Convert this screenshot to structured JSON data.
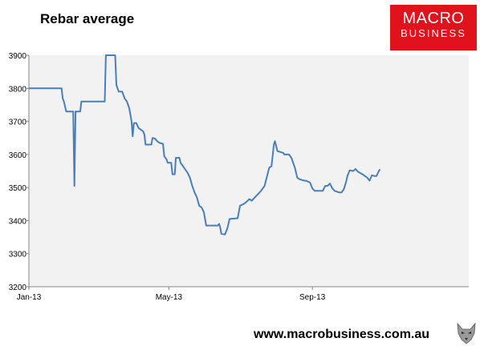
{
  "header": {
    "title": "Rebar average"
  },
  "logo": {
    "line1": "MACRO",
    "line2": "BUSINESS",
    "color": "#e0121b"
  },
  "footer": {
    "url": "www.macrobusiness.com.au"
  },
  "icons": {
    "mascot": "wolf-mascot-icon"
  },
  "chart_data": {
    "type": "line",
    "title": "Rebar average",
    "xlabel": "",
    "ylabel": "",
    "ylim": [
      3200,
      3900
    ],
    "yticks": [
      3200,
      3300,
      3400,
      3500,
      3600,
      3700,
      3800,
      3900
    ],
    "xticks": [
      "Jan-13",
      "May-13",
      "Sep-13"
    ],
    "xlim": [
      "2013-01-01",
      "2013-12-31"
    ],
    "grid": false,
    "line_color": "#4a7ebb",
    "plot_background": "#f2f2f2",
    "series": [
      {
        "points": [
          [
            "2013-01-01",
            3800
          ],
          [
            "2013-01-29",
            3800
          ],
          [
            "2013-01-30",
            3770
          ],
          [
            "2013-01-31",
            3760
          ],
          [
            "2013-02-02",
            3730
          ],
          [
            "2013-02-08",
            3730
          ],
          [
            "2013-02-09",
            3505
          ],
          [
            "2013-02-10",
            3730
          ],
          [
            "2013-02-14",
            3730
          ],
          [
            "2013-02-15",
            3760
          ],
          [
            "2013-03-07",
            3760
          ],
          [
            "2013-03-08",
            3900
          ],
          [
            "2013-03-16",
            3900
          ],
          [
            "2013-03-17",
            3810
          ],
          [
            "2013-03-19",
            3790
          ],
          [
            "2013-03-22",
            3790
          ],
          [
            "2013-03-24",
            3770
          ],
          [
            "2013-03-26",
            3760
          ],
          [
            "2013-03-28",
            3740
          ],
          [
            "2013-03-30",
            3700
          ],
          [
            "2013-03-31",
            3655
          ],
          [
            "2013-04-01",
            3695
          ],
          [
            "2013-04-03",
            3695
          ],
          [
            "2013-04-05",
            3680
          ],
          [
            "2013-04-07",
            3675
          ],
          [
            "2013-04-09",
            3670
          ],
          [
            "2013-04-10",
            3660
          ],
          [
            "2013-04-11",
            3630
          ],
          [
            "2013-04-16",
            3630
          ],
          [
            "2013-04-17",
            3650
          ],
          [
            "2013-04-19",
            3648
          ],
          [
            "2013-04-21",
            3640
          ],
          [
            "2013-04-23",
            3635
          ],
          [
            "2013-04-26",
            3632
          ],
          [
            "2013-04-27",
            3595
          ],
          [
            "2013-04-29",
            3585
          ],
          [
            "2013-04-30",
            3575
          ],
          [
            "2013-05-03",
            3575
          ],
          [
            "2013-05-04",
            3540
          ],
          [
            "2013-05-06",
            3540
          ],
          [
            "2013-05-07",
            3590
          ],
          [
            "2013-05-10",
            3590
          ],
          [
            "2013-05-11",
            3575
          ],
          [
            "2013-05-13",
            3565
          ],
          [
            "2013-05-15",
            3555
          ],
          [
            "2013-05-17",
            3545
          ],
          [
            "2013-05-19",
            3530
          ],
          [
            "2013-05-21",
            3505
          ],
          [
            "2013-05-23",
            3485
          ],
          [
            "2013-05-25",
            3470
          ],
          [
            "2013-05-27",
            3445
          ],
          [
            "2013-05-29",
            3440
          ],
          [
            "2013-05-31",
            3425
          ],
          [
            "2013-06-02",
            3385
          ],
          [
            "2013-06-04",
            3385
          ],
          [
            "2013-06-12",
            3385
          ],
          [
            "2013-06-13",
            3390
          ],
          [
            "2013-06-14",
            3380
          ],
          [
            "2013-06-15",
            3360
          ],
          [
            "2013-06-18",
            3358
          ],
          [
            "2013-06-20",
            3375
          ],
          [
            "2013-06-22",
            3405
          ],
          [
            "2013-06-29",
            3407
          ],
          [
            "2013-07-01",
            3445
          ],
          [
            "2013-07-04",
            3450
          ],
          [
            "2013-07-06",
            3455
          ],
          [
            "2013-07-09",
            3465
          ],
          [
            "2013-07-11",
            3460
          ],
          [
            "2013-07-15",
            3475
          ],
          [
            "2013-07-19",
            3490
          ],
          [
            "2013-07-22",
            3505
          ],
          [
            "2013-07-26",
            3560
          ],
          [
            "2013-07-28",
            3565
          ],
          [
            "2013-07-30",
            3630
          ],
          [
            "2013-07-31",
            3640
          ],
          [
            "2013-08-02",
            3610
          ],
          [
            "2013-08-07",
            3605
          ],
          [
            "2013-08-08",
            3600
          ],
          [
            "2013-08-12",
            3600
          ],
          [
            "2013-08-14",
            3590
          ],
          [
            "2013-08-17",
            3560
          ],
          [
            "2013-08-19",
            3530
          ],
          [
            "2013-08-21",
            3525
          ],
          [
            "2013-08-24",
            3522
          ],
          [
            "2013-08-27",
            3520
          ],
          [
            "2013-08-30",
            3515
          ],
          [
            "2013-09-01",
            3497
          ],
          [
            "2013-09-03",
            3490
          ],
          [
            "2013-09-10",
            3490
          ],
          [
            "2013-09-12",
            3505
          ],
          [
            "2013-09-14",
            3505
          ],
          [
            "2013-09-16",
            3512
          ],
          [
            "2013-09-18",
            3498
          ],
          [
            "2013-09-20",
            3490
          ],
          [
            "2013-09-24",
            3485
          ],
          [
            "2013-09-26",
            3485
          ],
          [
            "2013-09-28",
            3495
          ],
          [
            "2013-09-30",
            3518
          ],
          [
            "2013-10-01",
            3535
          ],
          [
            "2013-10-03",
            3552
          ],
          [
            "2013-10-06",
            3550
          ],
          [
            "2013-10-08",
            3556
          ],
          [
            "2013-10-10",
            3548
          ],
          [
            "2013-10-14",
            3540
          ],
          [
            "2013-10-18",
            3530
          ],
          [
            "2013-10-20",
            3521
          ],
          [
            "2013-10-22",
            3537
          ],
          [
            "2013-10-24",
            3535
          ],
          [
            "2013-10-26",
            3535
          ],
          [
            "2013-10-28",
            3550
          ],
          [
            "2013-10-29",
            3555
          ]
        ]
      }
    ]
  }
}
